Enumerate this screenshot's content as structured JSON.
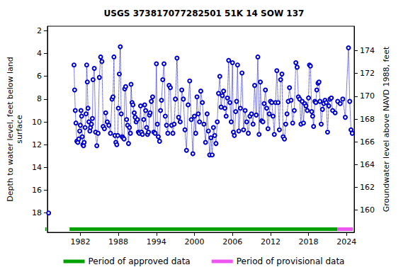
{
  "chart_data": {
    "type": "line",
    "title": "USGS 373817077282501 51K 14 SOW 137",
    "y_label": "Depth to water level, feet below land\nsurface",
    "y2_label": "Groundwater level above NAVD 1988, feet",
    "marker": "circle",
    "line_style": "dotted",
    "color": "#0000cc",
    "grid": false,
    "legend": "bottom",
    "xlim": [
      1976.8,
      2025.2
    ],
    "xticks": [
      1982,
      1988,
      1994,
      2000,
      2006,
      2012,
      2018,
      2024
    ],
    "ylim": [
      1.6,
      19.7
    ],
    "yticks": [
      2,
      4,
      6,
      8,
      10,
      12,
      14,
      16,
      18
    ],
    "y2lim": [
      158.05,
      176.15
    ],
    "y2ticks": [
      160,
      162,
      164,
      166,
      168,
      170,
      172,
      174
    ],
    "x": [
      1977.0,
      1979.0,
      1981.0,
      1981.1,
      1981.2,
      1981.3,
      1981.45,
      1981.6,
      1981.75,
      1981.9,
      1982.0,
      1982.1,
      1982.2,
      1982.3,
      1982.4,
      1982.5,
      1982.6,
      1982.75,
      1982.9,
      1983.0,
      1983.1,
      1983.2,
      1983.35,
      1983.5,
      1983.6,
      1983.75,
      1983.9,
      1984.0,
      1984.2,
      1984.4,
      1984.6,
      1984.8,
      1985.0,
      1985.2,
      1985.4,
      1985.6,
      1985.8,
      1986.0,
      1986.25,
      1986.5,
      1986.75,
      1987.0,
      1987.15,
      1987.3,
      1987.45,
      1987.6,
      1987.75,
      1987.9,
      1988.0,
      1988.15,
      1988.3,
      1988.45,
      1988.6,
      1988.75,
      1988.9,
      1989.0,
      1989.15,
      1989.3,
      1989.45,
      1989.6,
      1989.75,
      1989.9,
      1990.0,
      1990.15,
      1990.3,
      1990.5,
      1990.65,
      1990.8,
      1991.0,
      1991.15,
      1991.3,
      1991.5,
      1991.65,
      1991.8,
      1992.0,
      1992.15,
      1992.3,
      1992.45,
      1992.6,
      1992.75,
      1992.9,
      1993.0,
      1993.2,
      1993.4,
      1993.6,
      1993.8,
      1994.0,
      1994.15,
      1994.3,
      1994.5,
      1994.65,
      1994.8,
      1995.0,
      1995.2,
      1995.4,
      1995.6,
      1995.8,
      1996.0,
      1996.2,
      1996.4,
      1996.6,
      1996.8,
      1997.0,
      1997.25,
      1997.5,
      1997.75,
      1998.0,
      1998.25,
      1998.5,
      1998.75,
      1999.0,
      1999.25,
      1999.5,
      1999.75,
      2000.0,
      2000.2,
      2000.4,
      2000.6,
      2000.8,
      2001.0,
      2001.25,
      2001.5,
      2001.75,
      2002.0,
      2002.2,
      2002.4,
      2002.6,
      2002.8,
      2003.0,
      2003.2,
      2003.4,
      2003.6,
      2003.8,
      2004.0,
      2004.2,
      2004.4,
      2004.6,
      2004.8,
      2005.0,
      2005.2,
      2005.4,
      2005.6,
      2005.8,
      2006.0,
      2006.15,
      2006.3,
      2006.5,
      2006.65,
      2006.8,
      2007.0,
      2007.25,
      2007.5,
      2007.75,
      2008.0,
      2008.25,
      2008.5,
      2008.75,
      2009.0,
      2009.25,
      2009.5,
      2009.75,
      2010.0,
      2010.2,
      2010.4,
      2010.6,
      2010.8,
      2011.0,
      2011.2,
      2011.4,
      2011.6,
      2011.8,
      2012.0,
      2012.2,
      2012.4,
      2012.6,
      2012.8,
      2013.0,
      2013.2,
      2013.4,
      2013.6,
      2013.8,
      2014.0,
      2014.2,
      2014.4,
      2014.6,
      2014.8,
      2015.0,
      2015.25,
      2015.5,
      2015.75,
      2016.0,
      2016.2,
      2016.4,
      2016.6,
      2016.8,
      2017.0,
      2017.2,
      2017.4,
      2017.6,
      2017.8,
      2018.0,
      2018.15,
      2018.3,
      2018.5,
      2018.65,
      2018.8,
      2019.0,
      2019.15,
      2019.3,
      2019.5,
      2019.65,
      2019.8,
      2020.0,
      2020.2,
      2020.4,
      2020.6,
      2020.8,
      2021.0,
      2021.2,
      2021.4,
      2021.6,
      2021.8,
      2022.2,
      2022.6,
      2023.0,
      2023.4,
      2023.8,
      2024.3,
      2024.5,
      2024.7,
      2024.9
    ],
    "values": [
      18.0,
      null,
      5.0,
      7.2,
      9.0,
      10.1,
      11.7,
      11.8,
      11.5,
      10.8,
      10.3,
      9.0,
      9.5,
      11.3,
      12.0,
      12.1,
      11.8,
      10.5,
      9.3,
      5.0,
      6.5,
      8.8,
      10.0,
      10.8,
      10.5,
      10.2,
      9.7,
      6.3,
      5.3,
      10.9,
      12.1,
      11.0,
      6.1,
      4.3,
      4.7,
      10.4,
      10.6,
      9.2,
      10.0,
      10.3,
      11.0,
      8.0,
      7.8,
      4.3,
      11.2,
      11.8,
      12.0,
      11.2,
      8.8,
      5.8,
      3.4,
      9.3,
      11.3,
      11.4,
      11.5,
      7.1,
      6.9,
      9.8,
      10.3,
      11.9,
      10.5,
      11.0,
      6.7,
      8.3,
      8.5,
      9.2,
      9.6,
      10.0,
      9.8,
      10.9,
      11.0,
      8.6,
      10.9,
      11.1,
      9.8,
      8.5,
      9.0,
      10.5,
      11.1,
      10.9,
      9.4,
      9.2,
      8.2,
      7.8,
      10.9,
      11.0,
      4.9,
      10.2,
      11.3,
      11.7,
      9.0,
      8.1,
      6.3,
      4.9,
      9.5,
      10.3,
      11.0,
      6.8,
      7.0,
      10.3,
      11.0,
      10.2,
      8.0,
      4.4,
      9.6,
      10.0,
      7.2,
      8.0,
      10.7,
      12.5,
      8.5,
      6.4,
      9.8,
      12.8,
      9.5,
      11.0,
      7.8,
      9.3,
      10.0,
      7.3,
      8.3,
      10.2,
      11.8,
      9.3,
      10.8,
      12.9,
      11.4,
      12.9,
      10.5,
      11.2,
      11.9,
      10.0,
      7.5,
      6.0,
      8.7,
      7.7,
      7.3,
      8.8,
      9.5,
      7.9,
      4.6,
      8.3,
      10.0,
      4.8,
      10.9,
      11.2,
      9.1,
      8.2,
      5.0,
      10.8,
      8.8,
      5.7,
      10.7,
      9.0,
      10.0,
      11.0,
      9.5,
      9.3,
      10.2,
      6.8,
      9.4,
      4.3,
      11.1,
      6.5,
      9.9,
      10.0,
      8.4,
      7.2,
      8.8,
      10.6,
      9.3,
      8.2,
      8.3,
      9.5,
      11.1,
      8.3,
      5.5,
      8.3,
      10.7,
      6.3,
      5.8,
      11.3,
      11.5,
      10.2,
      9.3,
      8.2,
      7.0,
      8.1,
      10.1,
      9.0,
      4.8,
      5.2,
      7.8,
      8.0,
      10.2,
      8.2,
      10.1,
      8.4,
      8.6,
      9.0,
      7.9,
      5.0,
      5.1,
      9.1,
      9.5,
      10.4,
      8.2,
      8.3,
      7.2,
      6.6,
      6.5,
      8.2,
      10.2,
      8.9,
      8.4,
      8.1,
      8.3,
      10.9,
      8.6,
      8.0,
      7.9,
      9.0,
      9.2,
      8.2,
      8.4,
      8.0,
      9.6,
      3.5,
      8.2,
      10.7,
      11.0
    ],
    "periods": [
      {
        "name": "Period of approved data",
        "color": "#00a000",
        "ranges": [
          [
            1977.0,
            1977.2
          ],
          [
            1980.8,
            2022.6
          ]
        ]
      },
      {
        "name": "Period of provisional data",
        "color": "#ee55ee",
        "ranges": [
          [
            2022.6,
            2025.0
          ]
        ]
      }
    ]
  }
}
